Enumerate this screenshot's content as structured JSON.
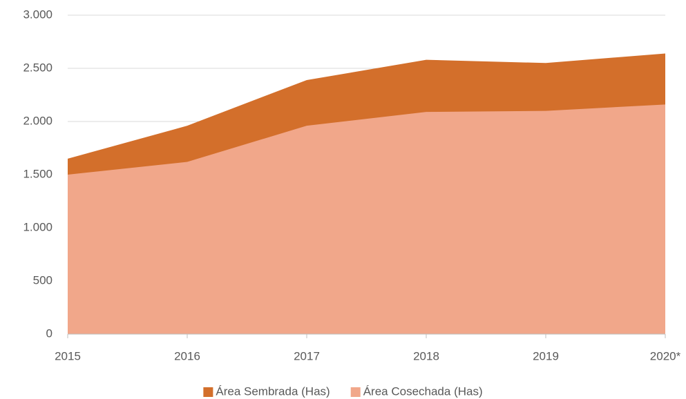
{
  "chart_data": {
    "type": "area",
    "categories": [
      "2015",
      "2016",
      "2017",
      "2018",
      "2019",
      "2020*"
    ],
    "series": [
      {
        "name": "Área Sembrada (Has)",
        "color": "#d36f2b",
        "values": [
          1650,
          1960,
          2390,
          2580,
          2550,
          2640
        ]
      },
      {
        "name": "Área Cosechada (Has)",
        "color": "#f1a78a",
        "values": [
          1500,
          1620,
          1960,
          2090,
          2100,
          2160
        ]
      }
    ],
    "ylim": [
      0,
      3000
    ],
    "yticks": [
      0,
      500,
      {
        "value": 1000,
        "label": "1.000"
      },
      {
        "value": 1500,
        "label": "1.500"
      },
      {
        "value": 2000,
        "label": "2.000"
      },
      {
        "value": 2500,
        "label": "2.500"
      },
      {
        "value": 3000,
        "label": "3.000"
      }
    ],
    "grid": true,
    "legend": "bottom"
  }
}
